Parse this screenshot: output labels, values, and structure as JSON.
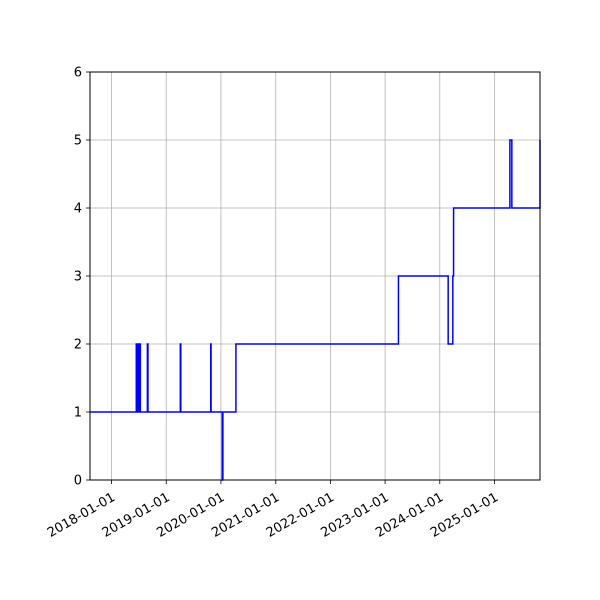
{
  "chart_data": {
    "type": "line",
    "title": "",
    "xlabel": "",
    "ylabel": "",
    "x_type": "date",
    "xlim": [
      "2017-08-10",
      "2025-10-31"
    ],
    "ylim": [
      0,
      6
    ],
    "grid": true,
    "legend": "none",
    "line_color": "#0000ff",
    "grid_color": "#b0b0b0",
    "x_ticks": [
      "2018-01-01",
      "2019-01-01",
      "2020-01-01",
      "2021-01-01",
      "2022-01-01",
      "2023-01-01",
      "2024-01-01",
      "2025-01-01"
    ],
    "y_ticks": [
      "0",
      "1",
      "2",
      "3",
      "4",
      "5",
      "6"
    ],
    "series": [
      {
        "step": true,
        "x": [
          "2017-08-10",
          "2018-06-15",
          "2018-06-22",
          "2018-07-01",
          "2018-07-06",
          "2018-07-08",
          "2018-07-12",
          "2018-08-28",
          "2018-09-01",
          "2019-04-05",
          "2019-04-08",
          "2019-10-25",
          "2019-10-27",
          "2020-01-10",
          "2020-01-14",
          "2020-04-10",
          "2023-03-31",
          "2024-02-26",
          "2024-03-28",
          "2024-04-02",
          "2025-04-13",
          "2025-04-26",
          "2025-10-31"
        ],
        "y": [
          1,
          2,
          1,
          2,
          1,
          2,
          1,
          2,
          1,
          2,
          1,
          2,
          1,
          0,
          1,
          2,
          3,
          2,
          3,
          4,
          5,
          4,
          5
        ]
      }
    ]
  }
}
